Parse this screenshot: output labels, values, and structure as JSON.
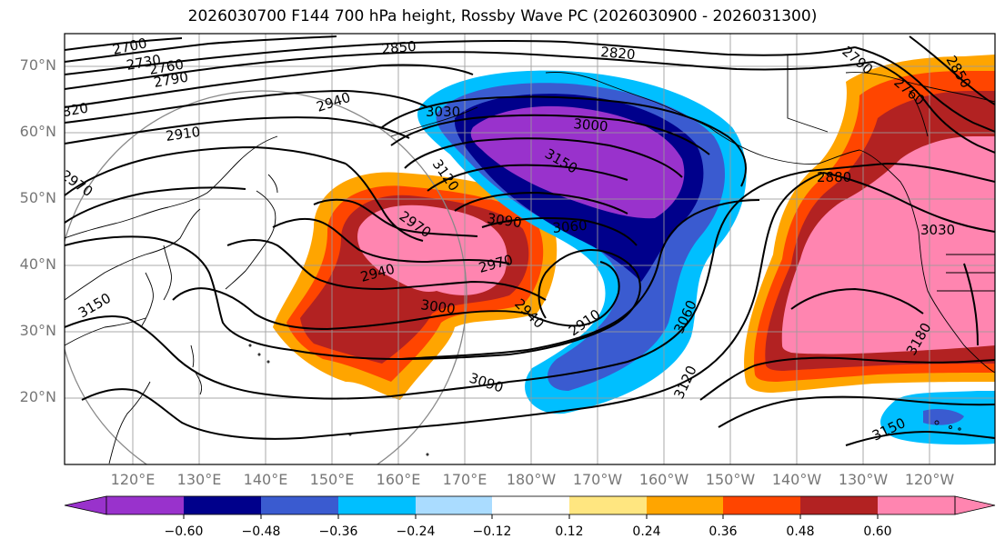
{
  "title": "2026030700 F144 700 hPa height, Rossby Wave PC (2026030900 - 2026031300)",
  "lat_labels": [
    "70°N",
    "60°N",
    "50°N",
    "40°N",
    "30°N",
    "20°N"
  ],
  "lon_labels": [
    "120°E",
    "130°E",
    "140°E",
    "150°E",
    "160°E",
    "170°E",
    "180°W",
    "170°W",
    "160°W",
    "150°W",
    "140°W",
    "130°W",
    "120°W"
  ],
  "colorbar": {
    "ticks": [
      "−0.60",
      "−0.48",
      "−0.36",
      "−0.24",
      "−0.12",
      "0.12",
      "0.24",
      "0.36",
      "0.48",
      "0.60"
    ],
    "colors": [
      "#9932cc",
      "#00008b",
      "#3a5bd0",
      "#00bfff",
      "#aadcff",
      "#ffffff",
      "#ffe680",
      "#ffa500",
      "#ff4500",
      "#b22222",
      "#ff85b0"
    ]
  },
  "contour_labels": [
    "2700",
    "2730",
    "2760",
    "2790",
    "2820",
    "2850",
    "2910",
    "2940",
    "2970",
    "2820",
    "3030",
    "3000",
    "3150",
    "3120",
    "3090",
    "3060",
    "2970",
    "2940",
    "2970",
    "2940",
    "3000",
    "2910",
    "3060",
    "3090",
    "3120",
    "3150",
    "2790",
    "2760",
    "2880",
    "2850",
    "3030",
    "3180",
    "3150"
  ],
  "colors": {
    "gridline": "#9a9a9a",
    "contour": "#000000",
    "coast": "#000000"
  }
}
